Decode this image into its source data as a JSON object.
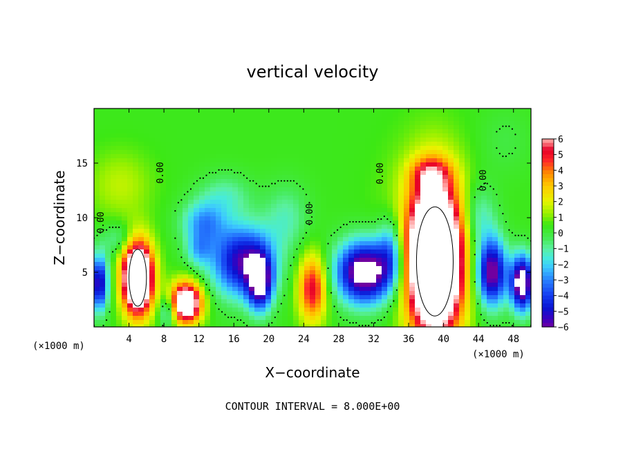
{
  "chart_data": {
    "type": "heatmap",
    "title": "vertical velocity",
    "xlabel": "X−coordinate",
    "ylabel": "Z−coordinate",
    "x_unit_left": "(×1000 m)",
    "x_unit_right": "(×1000 m)",
    "xlim": [
      0,
      50
    ],
    "ylim": [
      0,
      20
    ],
    "x_ticks": [
      4,
      8,
      12,
      16,
      20,
      24,
      28,
      32,
      36,
      40,
      44,
      48
    ],
    "y_ticks": [
      5,
      10,
      15
    ],
    "colorbar": {
      "min": -6,
      "max": 6,
      "tick_values": [
        6,
        5,
        4,
        3,
        2,
        1,
        0,
        -1,
        -2,
        -3,
        -4,
        -5,
        -6
      ],
      "tick_labels": [
        "6",
        "5",
        "4",
        "3",
        "2",
        "1",
        "0",
        "−1",
        "−2",
        "−3",
        "−4",
        "−5",
        "−6"
      ]
    },
    "contour_labels": [
      "0.00",
      "0.00",
      "0.00",
      "0.00",
      "0.00"
    ],
    "footer": "CONTOUR INTERVAL = 8.000E+00",
    "field": {
      "background": 0.4,
      "features": [
        {
          "x": 3,
          "z": 13,
          "sx": 3.5,
          "sz": 3,
          "v": 1.2
        },
        {
          "x": 38,
          "z": 10,
          "sx": 5,
          "sz": 7,
          "v": 1.0
        },
        {
          "x": 47,
          "z": 17,
          "sx": 3,
          "sz": 3,
          "v": -0.5
        },
        {
          "x": 5,
          "z": 4.5,
          "sx": 1.7,
          "sz": 3.2,
          "v": 12
        },
        {
          "x": 10.5,
          "z": 2.2,
          "sx": 1.8,
          "sz": 1.8,
          "v": 9
        },
        {
          "x": 25,
          "z": 3.5,
          "sx": 1.6,
          "sz": 3.0,
          "v": 5
        },
        {
          "x": 39,
          "z": 6,
          "sx": 3.0,
          "sz": 6.5,
          "v": 14
        },
        {
          "x": 38.5,
          "z": 14,
          "sx": 2.2,
          "sz": 1.5,
          "v": 3
        },
        {
          "x": 17,
          "z": 6,
          "sx": 3.5,
          "sz": 3.2,
          "v": -6
        },
        {
          "x": 19,
          "z": 4,
          "sx": 1.4,
          "sz": 2.5,
          "v": -6
        },
        {
          "x": 12.5,
          "z": 9.5,
          "sx": 2.5,
          "sz": 2,
          "v": -3
        },
        {
          "x": 15,
          "z": 12,
          "sx": 3,
          "sz": 2,
          "v": -1.5
        },
        {
          "x": 22,
          "z": 10,
          "sx": 2.5,
          "sz": 3,
          "v": -1.5
        },
        {
          "x": 31,
          "z": 5,
          "sx": 3.2,
          "sz": 2.8,
          "v": -8
        },
        {
          "x": 34,
          "z": 7,
          "sx": 1.5,
          "sz": 3,
          "v": -3
        },
        {
          "x": 45.5,
          "z": 5,
          "sx": 1.7,
          "sz": 3,
          "v": -7
        },
        {
          "x": 49,
          "z": 4,
          "sx": 1.3,
          "sz": 2.5,
          "v": -8
        },
        {
          "x": 0.6,
          "z": 4,
          "sx": 1.0,
          "sz": 2.5,
          "v": -6
        },
        {
          "x": 3,
          "z": 8,
          "sx": 2,
          "sz": 1.5,
          "v": -1.5
        },
        {
          "x": 8.5,
          "z": 1.5,
          "sx": 1.0,
          "sz": 1.5,
          "v": -3
        },
        {
          "x": 12,
          "z": 7,
          "sx": 1.5,
          "sz": 1.5,
          "v": -2
        },
        {
          "x": 44,
          "z": 10,
          "sx": 2,
          "sz": 3,
          "v": -2
        }
      ]
    }
  }
}
